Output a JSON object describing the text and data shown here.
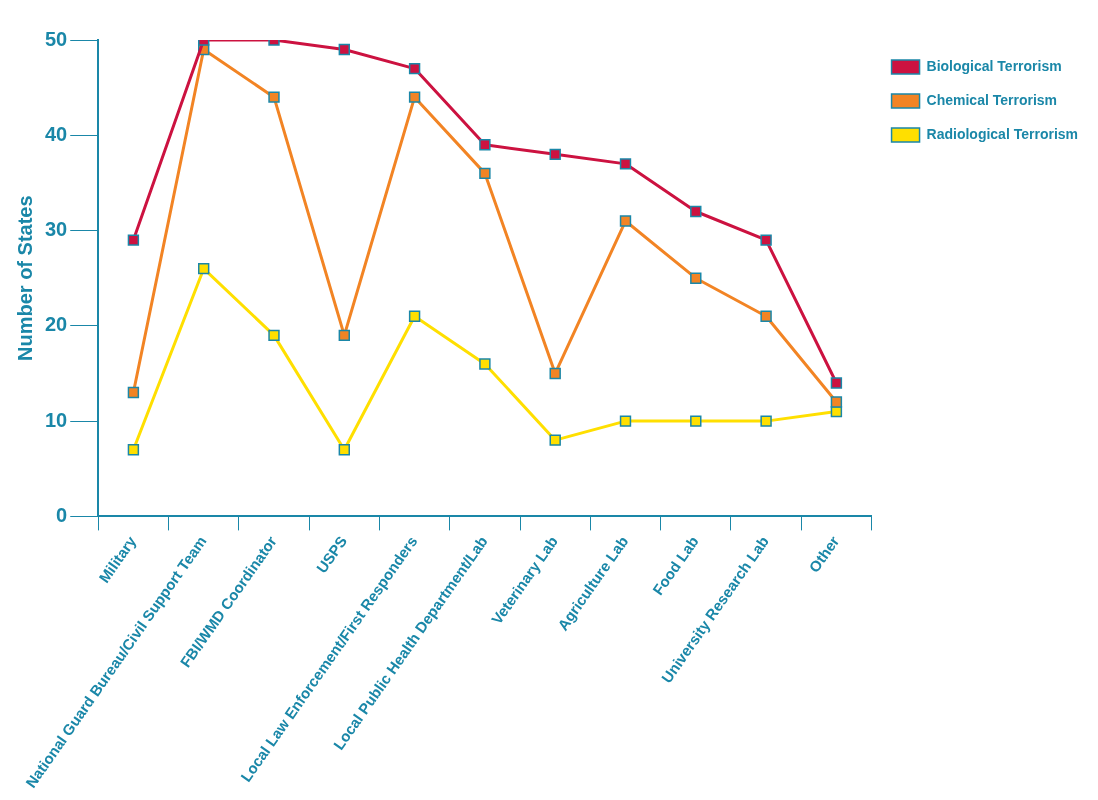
{
  "chart_data": {
    "type": "line",
    "ylabel": "Number of States",
    "categories": [
      "Military",
      "National Guard Bureau/Civil Support Team",
      "FBI/WMD Coordinator",
      "USPS",
      "Local Law Enforcement/First Responders",
      "Local Public Health Department/Lab",
      "Veterinary Lab",
      "Agriculture Lab",
      "Food Lab",
      "University Research Lab",
      "Other"
    ],
    "series": [
      {
        "name": "Biological Terrorism",
        "color": "#cc1240",
        "values": [
          29,
          50,
          50,
          49,
          47,
          39,
          38,
          37,
          32,
          29,
          14
        ]
      },
      {
        "name": "Chemical Terrorism",
        "color": "#f28424",
        "values": [
          13,
          49,
          44,
          19,
          44,
          36,
          15,
          31,
          25,
          21,
          12
        ]
      },
      {
        "name": "Radiological Terrorism",
        "color": "#ffdf00",
        "values": [
          7,
          26,
          19,
          7,
          21,
          16,
          8,
          10,
          10,
          10,
          11
        ]
      }
    ],
    "ylim": [
      0,
      50
    ],
    "yticks": [
      0,
      10,
      20,
      30,
      40,
      50
    ],
    "legend": "top right",
    "marker": "square",
    "line_style": "solid"
  }
}
